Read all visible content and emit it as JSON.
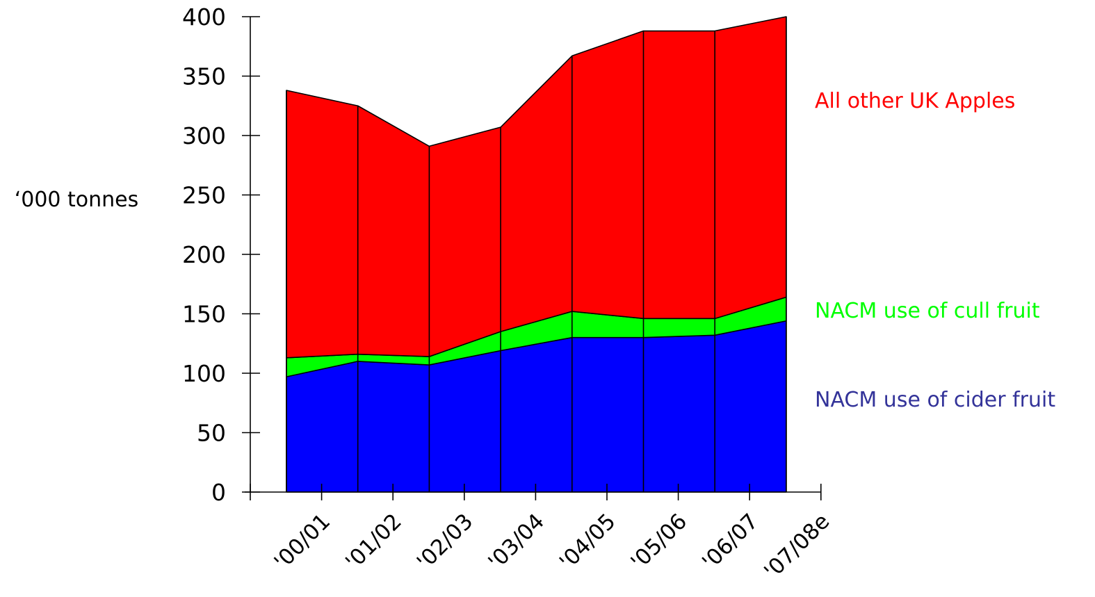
{
  "chart_data": {
    "type": "area",
    "stacked": true,
    "ylabel": "‘000 tonnes",
    "ylim": [
      0,
      400
    ],
    "yticks": [
      "0",
      "50",
      "100",
      "150",
      "200",
      "250",
      "300",
      "350",
      "400"
    ],
    "categories": [
      "'00/01",
      "'01/02",
      "'02/03",
      "'03/04",
      "'04/05",
      "'05/06",
      "'06/07",
      "'07/08e"
    ],
    "series": [
      {
        "name": "NACM use of cider fruit",
        "color": "#0000ff",
        "label_color": "#333399",
        "values": [
          97,
          110,
          107,
          119,
          130,
          130,
          132,
          144
        ]
      },
      {
        "name": "NACM use of cull fruit",
        "color": "#00ff00",
        "label_color": "#00ff00",
        "values": [
          16,
          6,
          7,
          16,
          22,
          16,
          14,
          20
        ]
      },
      {
        "name": "All other UK Apples",
        "color": "#ff0000",
        "label_color": "#ff0000",
        "values": [
          225,
          209,
          177,
          172,
          215,
          242,
          242,
          236
        ]
      }
    ],
    "grid": false,
    "legend": "right"
  }
}
